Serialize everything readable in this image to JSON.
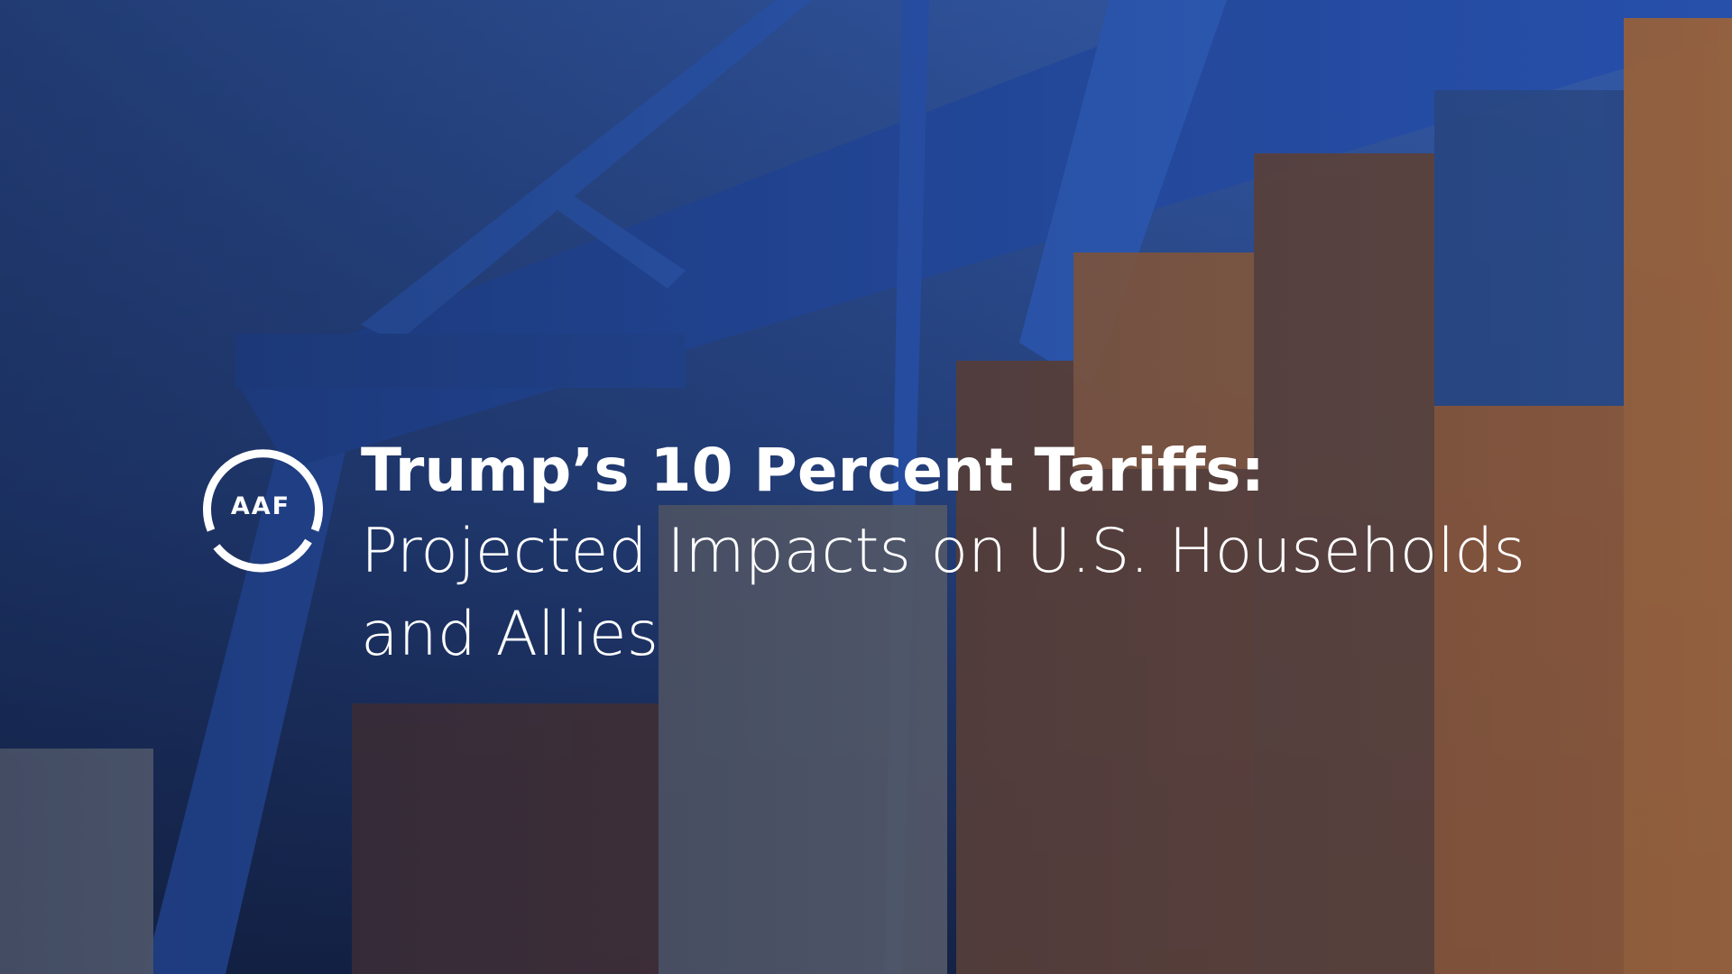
{
  "logo": {
    "text": "AAF"
  },
  "headline": {
    "title": "Trump’s 10 Percent Tariffs:",
    "subtitle": "Projected Impacts on U.S. Households and Allies"
  }
}
